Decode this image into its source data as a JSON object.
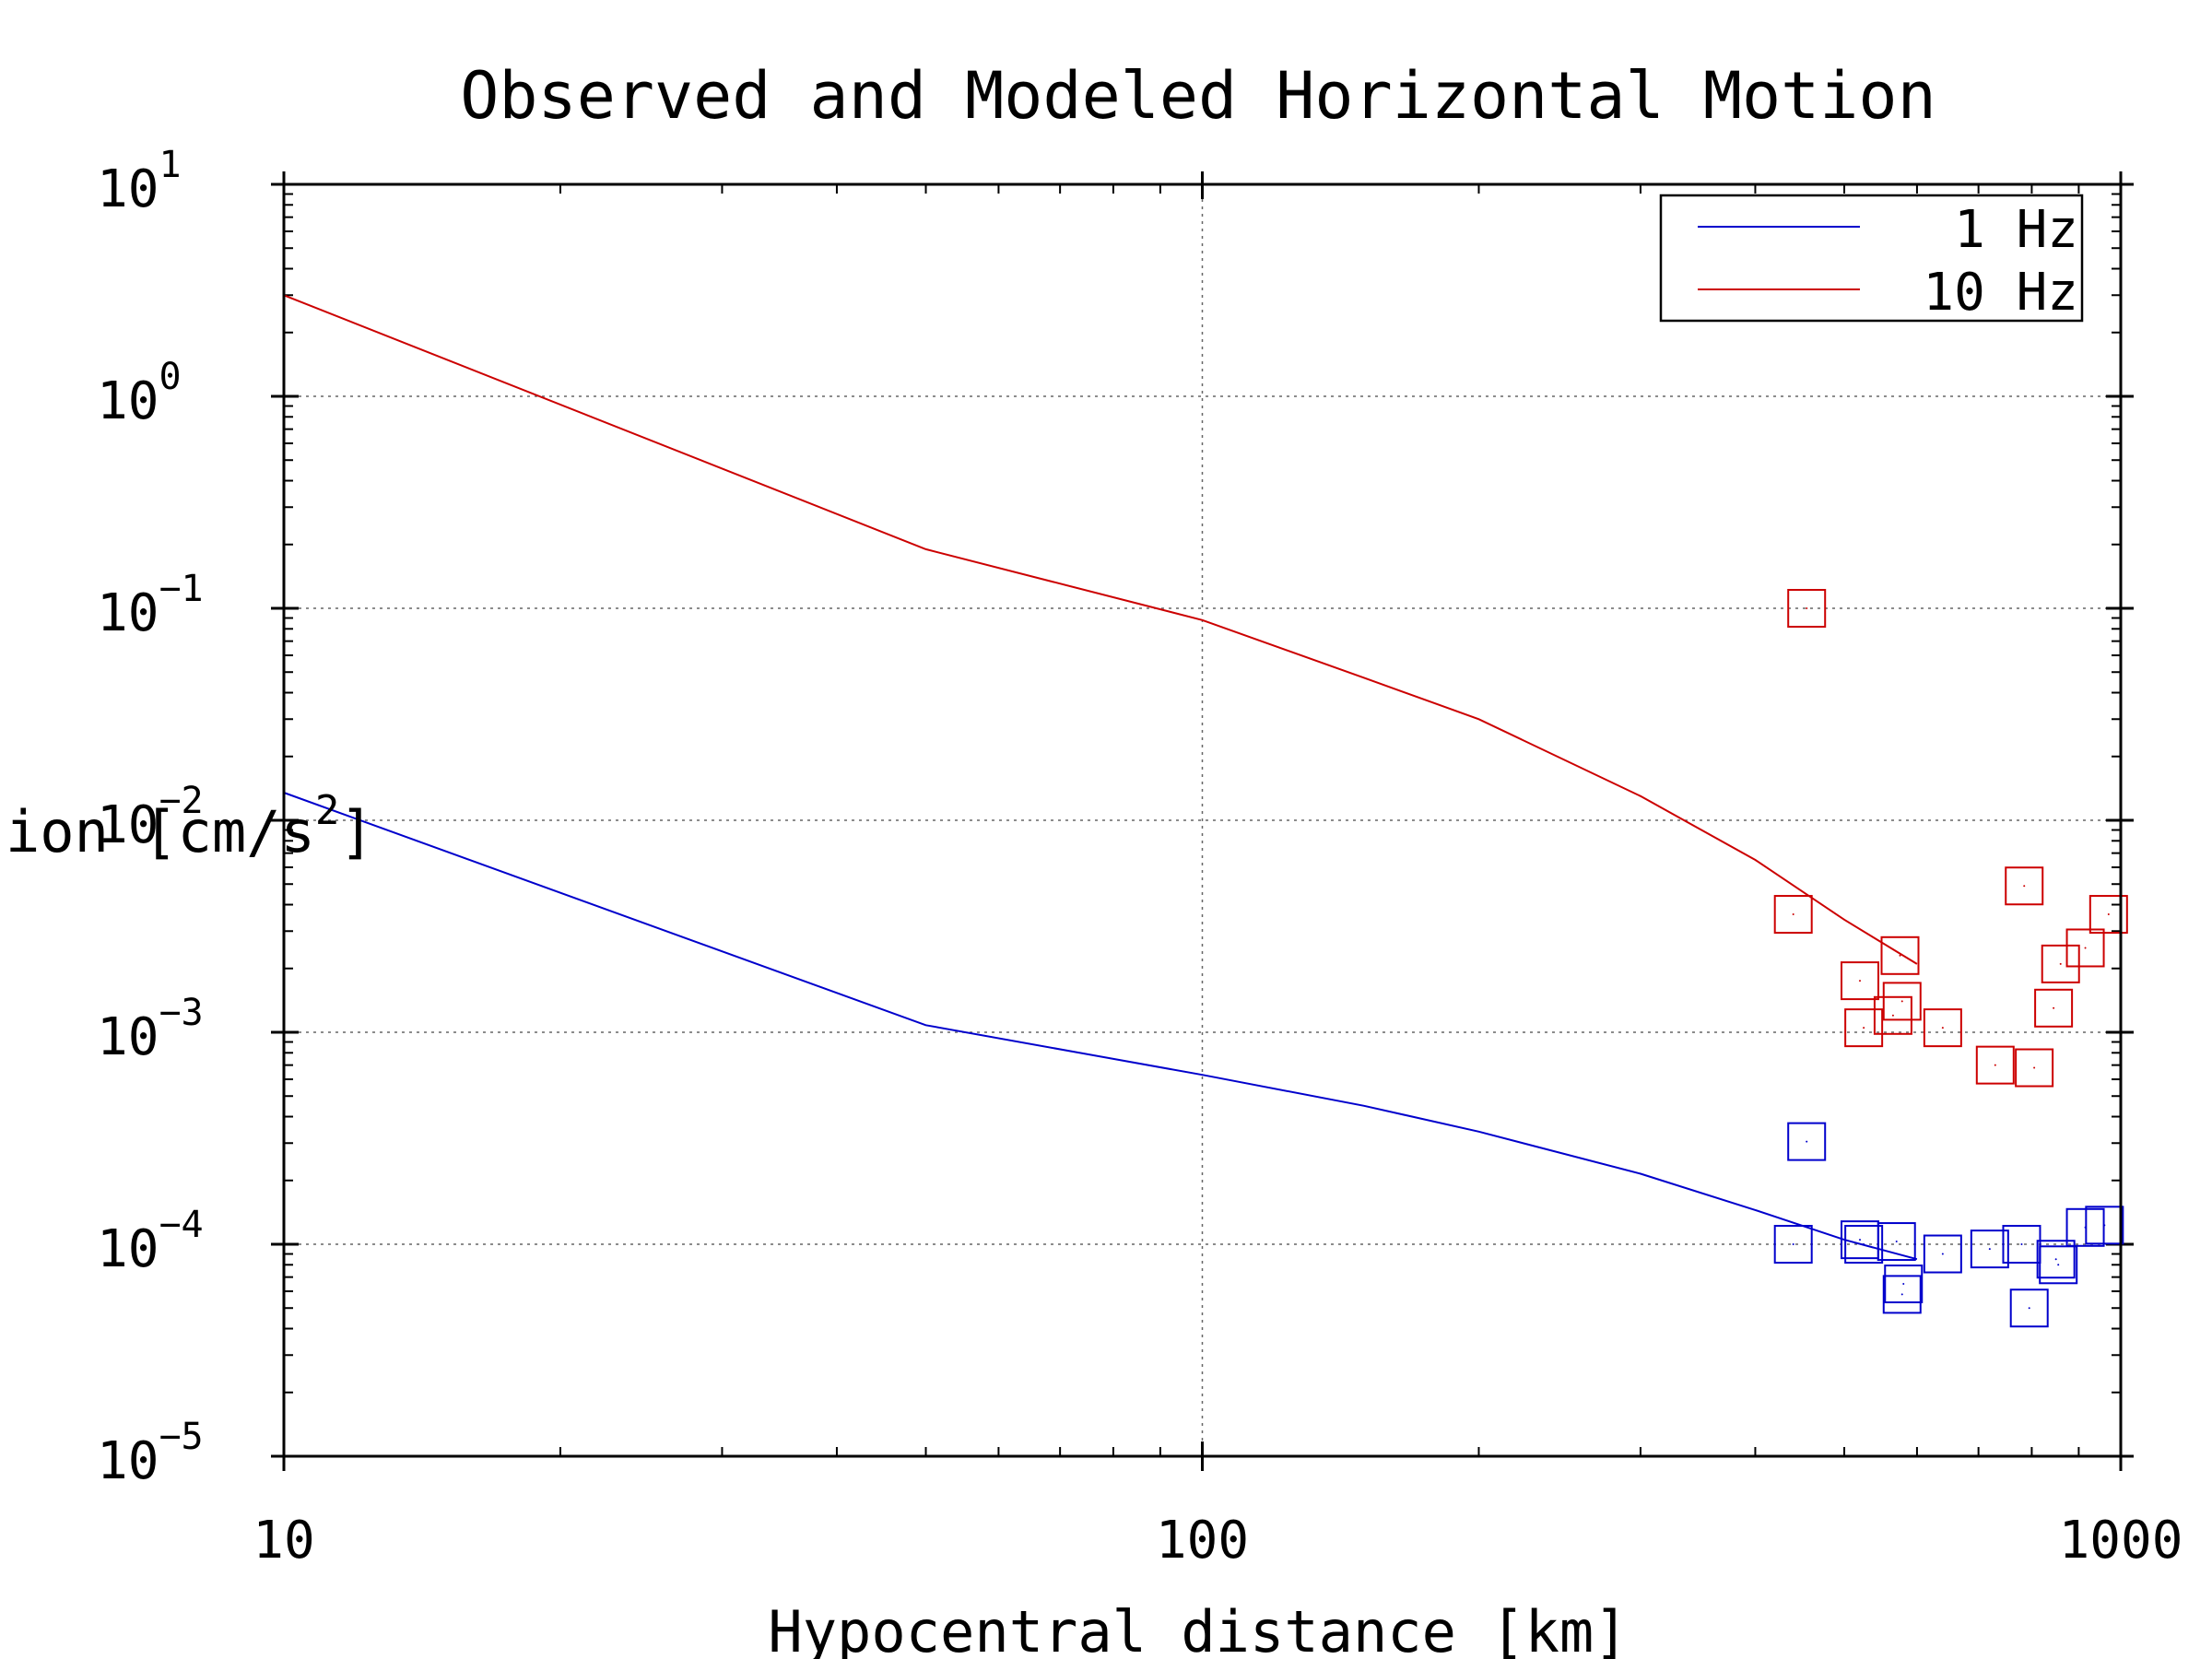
{
  "chart_data": {
    "type": "line",
    "title": "Observed and Modeled Horizontal Motion",
    "xlabel": "Hypocentral distance [km]",
    "ylabel_base": "Acceleration [cm/s",
    "ylabel_sup": "2",
    "ylabel_end": "]",
    "x_scale": "log",
    "y_scale": "log",
    "xlim": [
      10,
      1000
    ],
    "ylim": [
      1e-05,
      10
    ],
    "x_ticks": [
      {
        "value": 10,
        "label": "10"
      },
      {
        "value": 100,
        "label": "100"
      },
      {
        "value": 1000,
        "label": "1000"
      }
    ],
    "y_ticks": [
      {
        "value": 10,
        "base": "10",
        "exp": "1"
      },
      {
        "value": 1,
        "base": "10",
        "exp": "0"
      },
      {
        "value": 0.1,
        "base": "10",
        "exp": "−1"
      },
      {
        "value": 0.01,
        "base": "10",
        "exp": "−2"
      },
      {
        "value": 0.001,
        "base": "10",
        "exp": "−3"
      },
      {
        "value": 0.0001,
        "base": "10",
        "exp": "−4"
      },
      {
        "value": 1e-05,
        "base": "10",
        "exp": "−5"
      }
    ],
    "grid": "dotted at major ticks",
    "legend_position": "top-right",
    "series": [
      {
        "name": "1 Hz",
        "color": "#0000cc",
        "line": [
          {
            "x": 10,
            "y": 0.0135
          },
          {
            "x": 50,
            "y": 0.00108
          },
          {
            "x": 100,
            "y": 0.00063
          },
          {
            "x": 150,
            "y": 0.00045
          },
          {
            "x": 200,
            "y": 0.00034
          },
          {
            "x": 300,
            "y": 0.000215
          },
          {
            "x": 400,
            "y": 0.000145
          },
          {
            "x": 500,
            "y": 0.000105
          },
          {
            "x": 600,
            "y": 8.5e-05
          }
        ],
        "observed": [
          {
            "x": 455,
            "y": 0.000305
          },
          {
            "x": 440,
            "y": 0.0001
          },
          {
            "x": 520,
            "y": 0.000105
          },
          {
            "x": 525,
            "y": 0.0001
          },
          {
            "x": 570,
            "y": 0.000103
          },
          {
            "x": 580,
            "y": 6.5e-05
          },
          {
            "x": 578,
            "y": 5.8e-05
          },
          {
            "x": 640,
            "y": 9e-05
          },
          {
            "x": 720,
            "y": 9.5e-05
          },
          {
            "x": 780,
            "y": 0.0001
          },
          {
            "x": 795,
            "y": 5e-05
          },
          {
            "x": 850,
            "y": 8.5e-05
          },
          {
            "x": 855,
            "y": 8e-05
          },
          {
            "x": 915,
            "y": 0.00012
          },
          {
            "x": 960,
            "y": 0.000123
          }
        ]
      },
      {
        "name": "10 Hz",
        "color": "#cc0000",
        "line": [
          {
            "x": 10,
            "y": 3.0
          },
          {
            "x": 50,
            "y": 0.19
          },
          {
            "x": 100,
            "y": 0.088
          },
          {
            "x": 150,
            "y": 0.047
          },
          {
            "x": 200,
            "y": 0.03
          },
          {
            "x": 300,
            "y": 0.013
          },
          {
            "x": 400,
            "y": 0.0065
          },
          {
            "x": 500,
            "y": 0.0034
          },
          {
            "x": 600,
            "y": 0.0021
          }
        ],
        "observed": [
          {
            "x": 455,
            "y": 0.1
          },
          {
            "x": 440,
            "y": 0.0036
          },
          {
            "x": 520,
            "y": 0.00175
          },
          {
            "x": 525,
            "y": 0.00105
          },
          {
            "x": 565,
            "y": 0.0012
          },
          {
            "x": 578,
            "y": 0.0014
          },
          {
            "x": 575,
            "y": 0.0023
          },
          {
            "x": 640,
            "y": 0.00105
          },
          {
            "x": 730,
            "y": 0.0007
          },
          {
            "x": 785,
            "y": 0.0049
          },
          {
            "x": 805,
            "y": 0.00068
          },
          {
            "x": 845,
            "y": 0.0013
          },
          {
            "x": 860,
            "y": 0.0021
          },
          {
            "x": 915,
            "y": 0.0025
          },
          {
            "x": 970,
            "y": 0.0036
          }
        ]
      }
    ]
  }
}
